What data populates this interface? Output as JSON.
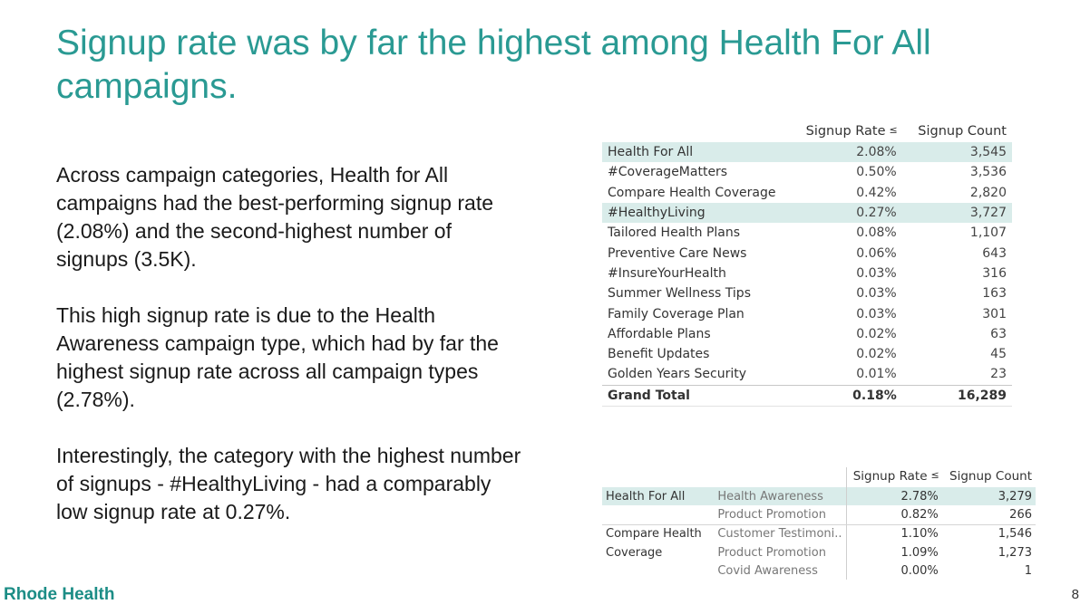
{
  "slide": {
    "title": "Signup rate was by far the highest among Health For All campaigns.",
    "paragraphs": [
      "Across campaign categories, Health for All campaigns had the best-performing signup rate (2.08%) and the second-highest number of signups (3.5K).",
      "This high signup rate is due to the Health Awareness campaign type, which had by far the highest signup rate across all campaign types (2.78%).",
      "Interestingly, the category with the highest number of signups - #HealthyLiving - had a comparably low signup rate at 0.27%."
    ],
    "brand": "Rhode Health",
    "page_number": "8"
  },
  "colors": {
    "accent": "#2a9a93",
    "highlight": "#d9ecea",
    "brand": "#1c8d86"
  },
  "table1": {
    "headers": [
      "",
      "Signup Rate",
      "Signup Count"
    ],
    "sort_icon": "sort-descending-icon",
    "rows": [
      {
        "name": "Health For All",
        "rate": "2.08%",
        "count": "3,545"
      },
      {
        "name": "#CoverageMatters",
        "rate": "0.50%",
        "count": "3,536"
      },
      {
        "name": "Compare Health Coverage",
        "rate": "0.42%",
        "count": "2,820"
      },
      {
        "name": "#HealthyLiving",
        "rate": "0.27%",
        "count": "3,727"
      },
      {
        "name": "Tailored Health Plans",
        "rate": "0.08%",
        "count": "1,107"
      },
      {
        "name": "Preventive Care News",
        "rate": "0.06%",
        "count": "643"
      },
      {
        "name": "#InsureYourHealth",
        "rate": "0.03%",
        "count": "316"
      },
      {
        "name": "Summer Wellness Tips",
        "rate": "0.03%",
        "count": "163"
      },
      {
        "name": "Family Coverage Plan",
        "rate": "0.03%",
        "count": "301"
      },
      {
        "name": "Affordable Plans",
        "rate": "0.02%",
        "count": "63"
      },
      {
        "name": "Benefit Updates",
        "rate": "0.02%",
        "count": "45"
      },
      {
        "name": "Golden Years Security",
        "rate": "0.01%",
        "count": "23"
      }
    ],
    "total": {
      "name": "Grand Total",
      "rate": "0.18%",
      "count": "16,289"
    }
  },
  "table2": {
    "headers": [
      "",
      "",
      "Signup Rate",
      "Signup Count"
    ],
    "groups": [
      {
        "category": "Health For All",
        "rows": [
          {
            "type": "Health Awareness",
            "rate": "2.78%",
            "count": "3,279"
          },
          {
            "type": "Product Promotion",
            "rate": "0.82%",
            "count": "266"
          }
        ]
      },
      {
        "category_line1": "Compare Health",
        "category_line2": "Coverage",
        "rows": [
          {
            "type": "Customer Testimoni..",
            "rate": "1.10%",
            "count": "1,546"
          },
          {
            "type": "Product Promotion",
            "rate": "1.09%",
            "count": "1,273"
          },
          {
            "type": "Covid Awareness",
            "rate": "0.00%",
            "count": "1"
          }
        ]
      }
    ]
  }
}
